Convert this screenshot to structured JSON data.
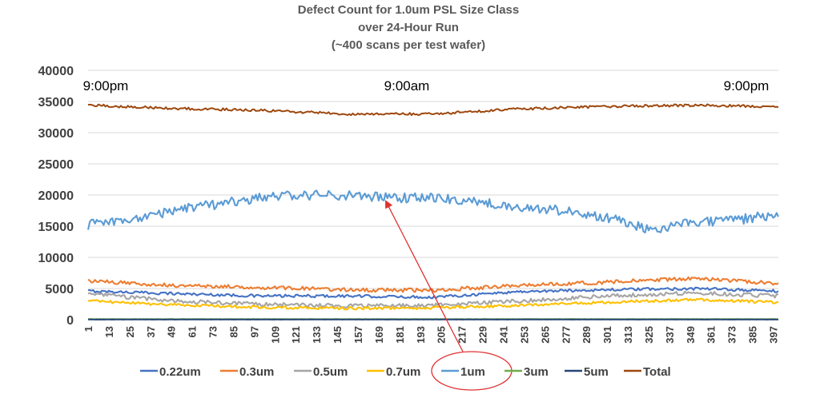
{
  "chart_data": {
    "type": "line",
    "title": [
      "Defect Count for 1.0um PSL Size Class",
      "over 24-Hour Run",
      "(~400 scans per test wafer)"
    ],
    "xlabel": "",
    "ylabel": "",
    "xlim": [
      1,
      400
    ],
    "ylim": [
      0,
      40000
    ],
    "yticks": [
      0,
      5000,
      10000,
      15000,
      20000,
      25000,
      30000,
      35000,
      40000
    ],
    "xticks": [
      1,
      13,
      25,
      37,
      49,
      61,
      73,
      85,
      97,
      109,
      121,
      133,
      145,
      157,
      169,
      181,
      193,
      205,
      217,
      229,
      241,
      253,
      265,
      277,
      289,
      301,
      313,
      325,
      337,
      349,
      361,
      373,
      385,
      397
    ],
    "grid": "horizontal",
    "legend_position": "bottom",
    "time_annotations": [
      {
        "label": "9:00pm",
        "x": 1
      },
      {
        "label": "9:00am",
        "x": 200
      },
      {
        "label": "9:00pm",
        "x": 400
      }
    ],
    "series": [
      {
        "name": "0.22um",
        "color": "#4472C4",
        "x": [
          1,
          50,
          100,
          150,
          200,
          250,
          300,
          350,
          400
        ],
        "y": [
          4600,
          4200,
          3800,
          3800,
          3600,
          4500,
          4800,
          5000,
          4600
        ],
        "noise": 220
      },
      {
        "name": "0.3um",
        "color": "#ED7D31",
        "x": [
          1,
          50,
          100,
          150,
          200,
          250,
          300,
          350,
          400
        ],
        "y": [
          6200,
          5500,
          5200,
          4800,
          4700,
          5500,
          6000,
          6600,
          5800
        ],
        "noise": 300
      },
      {
        "name": "0.5um",
        "color": "#A5A5A5",
        "x": [
          1,
          50,
          100,
          150,
          200,
          250,
          300,
          350,
          400
        ],
        "y": [
          4200,
          3000,
          2500,
          2200,
          2300,
          3000,
          3800,
          4300,
          3800
        ],
        "noise": 300
      },
      {
        "name": "0.7um",
        "color": "#FFC000",
        "x": [
          1,
          50,
          100,
          150,
          200,
          250,
          300,
          350,
          400
        ],
        "y": [
          3000,
          2400,
          2000,
          1800,
          1900,
          2300,
          2800,
          3200,
          2800
        ],
        "noise": 220
      },
      {
        "name": "1um",
        "color": "#5B9BD5",
        "x": [
          1,
          25,
          50,
          75,
          100,
          125,
          150,
          175,
          200,
          225,
          250,
          275,
          300,
          325,
          350,
          375,
          400
        ],
        "y": [
          15200,
          16000,
          17500,
          18500,
          19500,
          20000,
          20000,
          19500,
          19500,
          19000,
          18000,
          17500,
          16500,
          14500,
          15500,
          16000,
          16800
        ],
        "noise": 800
      },
      {
        "name": "3um",
        "color": "#70AD47",
        "x": [
          1,
          400
        ],
        "y": [
          100,
          100
        ],
        "noise": 20
      },
      {
        "name": "5um",
        "color": "#264478",
        "x": [
          1,
          400
        ],
        "y": [
          30,
          30
        ],
        "noise": 10
      },
      {
        "name": "Total",
        "color": "#9E480E",
        "x": [
          1,
          50,
          100,
          150,
          200,
          250,
          300,
          350,
          400
        ],
        "y": [
          34400,
          33900,
          33600,
          33000,
          33000,
          33800,
          34200,
          34400,
          34200
        ],
        "noise": 200
      }
    ]
  }
}
